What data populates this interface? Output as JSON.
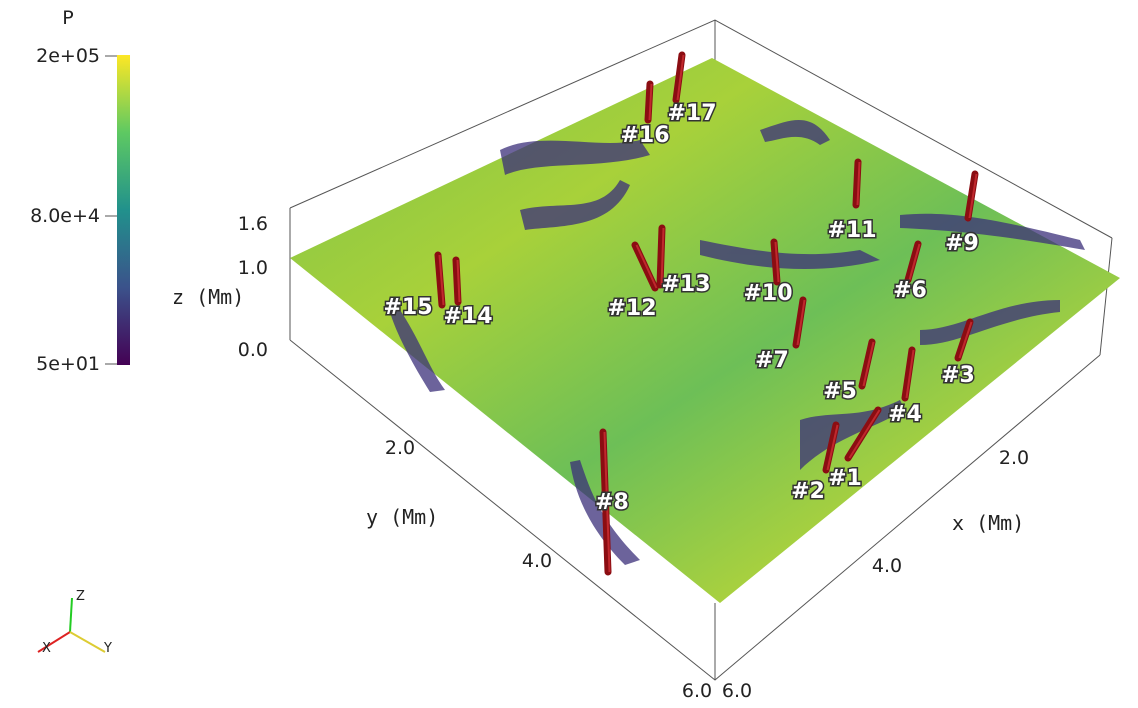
{
  "colorbar": {
    "title": "P",
    "labels": [
      "2e+05",
      "8.0e+4",
      "5e+01"
    ]
  },
  "axes": {
    "x": {
      "title": "x (Mm)",
      "ticks": [
        "2.0",
        "4.0",
        "6.0"
      ]
    },
    "y": {
      "title": "y (Mm)",
      "ticks": [
        "2.0",
        "4.0",
        "6.0"
      ]
    },
    "z": {
      "title": "z (Mm)",
      "ticks": [
        "1.6",
        "1.0",
        "0.0"
      ]
    }
  },
  "flux_tubes": [
    {
      "label": "#1"
    },
    {
      "label": "#2"
    },
    {
      "label": "#3"
    },
    {
      "label": "#4"
    },
    {
      "label": "#5"
    },
    {
      "label": "#6"
    },
    {
      "label": "#7"
    },
    {
      "label": "#8"
    },
    {
      "label": "#9"
    },
    {
      "label": "#10"
    },
    {
      "label": "#11"
    },
    {
      "label": "#12"
    },
    {
      "label": "#13"
    },
    {
      "label": "#14"
    },
    {
      "label": "#15"
    },
    {
      "label": "#16"
    },
    {
      "label": "#17"
    }
  ],
  "orientation": {
    "labels": [
      "X",
      "Y",
      "Z"
    ]
  }
}
